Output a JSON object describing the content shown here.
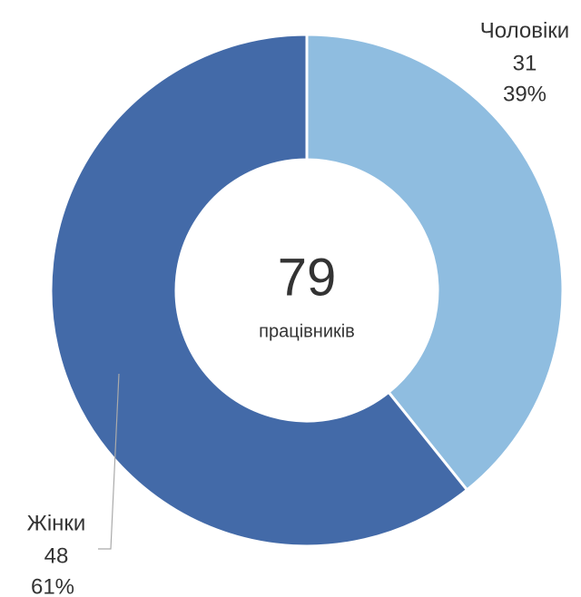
{
  "chart_data": {
    "type": "donut",
    "categories": [
      "Чоловіки",
      "Жінки"
    ],
    "values": [
      31,
      48
    ],
    "percent_labels": [
      "39%",
      "61%"
    ],
    "colors": [
      "#8fbde0",
      "#436aa8"
    ],
    "center_value": 79,
    "center_label": "працівників"
  }
}
